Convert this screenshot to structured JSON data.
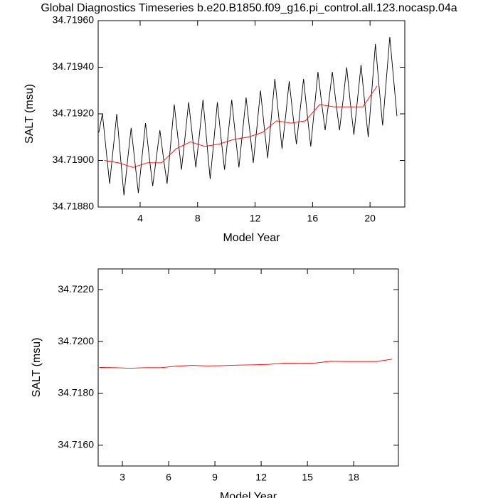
{
  "chart_data": [
    {
      "type": "line",
      "title": "Global Diagnostics Timeseries b.e20.B1850.f09_g16.pi_control.all.123.nocasp.04a",
      "y_label": "SALT (msu)",
      "x_label": "Model Year",
      "xlim": [
        1.08,
        22.42
      ],
      "xticks": [
        4,
        8,
        12,
        16,
        20
      ],
      "ylim": [
        34.7188,
        34.7196
      ],
      "yticks": [
        {
          "value": 34.7188,
          "label": "34.71880"
        },
        {
          "value": 34.719,
          "label": "34.71900"
        },
        {
          "value": 34.7192,
          "label": "34.71920"
        },
        {
          "value": 34.7194,
          "label": "34.71940"
        },
        {
          "value": 34.7196,
          "label": "34.71960"
        }
      ],
      "series": [
        {
          "color": "#000000",
          "x": [
            1.125,
            1.375,
            1.625,
            1.875,
            2.125,
            2.375,
            2.625,
            2.875,
            3.125,
            3.375,
            3.625,
            3.875,
            4.125,
            4.375,
            4.625,
            4.875,
            5.125,
            5.375,
            5.625,
            5.875,
            6.125,
            6.375,
            6.625,
            6.875,
            7.125,
            7.375,
            7.625,
            7.875,
            8.125,
            8.375,
            8.625,
            8.875,
            9.125,
            9.375,
            9.625,
            9.875,
            10.125,
            10.375,
            10.625,
            10.875,
            11.125,
            11.375,
            11.625,
            11.875,
            12.125,
            12.375,
            12.625,
            12.875,
            13.125,
            13.375,
            13.625,
            13.875,
            14.125,
            14.375,
            14.625,
            14.875,
            15.125,
            15.375,
            15.625,
            15.875,
            16.125,
            16.375,
            16.625,
            16.875,
            17.125,
            17.375,
            17.625,
            17.875,
            18.125,
            18.375,
            18.625,
            18.875,
            19.125,
            19.375,
            19.625,
            19.875,
            20.125,
            20.375,
            20.625,
            20.875,
            21.125,
            21.375,
            21.625,
            21.875
          ],
          "values": [
            34.71912,
            34.7192,
            34.71905,
            34.7189,
            34.71905,
            34.7192,
            34.71902,
            34.71885,
            34.719,
            34.71914,
            34.719,
            34.71886,
            34.71901,
            34.71916,
            34.71902,
            34.71889,
            34.71901,
            34.71913,
            34.71901,
            34.7189,
            34.71907,
            34.71924,
            34.7191,
            34.71896,
            34.7191,
            34.71925,
            34.71911,
            34.71897,
            34.71911,
            34.71926,
            34.71909,
            34.71892,
            34.71908,
            34.71925,
            34.7191,
            34.71896,
            34.71911,
            34.71926,
            34.71911,
            34.71897,
            34.71912,
            34.71927,
            34.71913,
            34.71899,
            34.71914,
            34.7193,
            34.71915,
            34.71901,
            34.71918,
            34.71935,
            34.7192,
            34.71905,
            34.71919,
            34.71934,
            34.7192,
            34.71907,
            34.71921,
            34.71935,
            34.7192,
            34.71906,
            34.71922,
            34.71938,
            34.71925,
            34.71913,
            34.71925,
            34.71938,
            34.71925,
            34.71913,
            34.71926,
            34.7194,
            34.71925,
            34.71911,
            34.71926,
            34.71941,
            34.71925,
            34.7191,
            34.7193,
            34.7195,
            34.71932,
            34.71915,
            34.71934,
            34.71953,
            34.71936,
            34.71919
          ]
        },
        {
          "color": "#ff0000",
          "x": [
            1.5,
            2.5,
            3.5,
            4.5,
            5.5,
            6.5,
            7.5,
            8.5,
            9.5,
            10.5,
            11.5,
            12.5,
            13.5,
            14.5,
            15.5,
            16.5,
            17.5,
            18.5,
            19.5,
            20.5
          ],
          "values": [
            34.719,
            34.71899,
            34.71897,
            34.71899,
            34.71899,
            34.71905,
            34.71908,
            34.71906,
            34.71907,
            34.71909,
            34.7191,
            34.71912,
            34.71917,
            34.71916,
            34.71917,
            34.71924,
            34.71923,
            34.71923,
            34.71923,
            34.71932
          ]
        }
      ]
    },
    {
      "type": "line",
      "y_label": "SALT (msu)",
      "x_label": "Model Year",
      "xlim": [
        1.43,
        20.9
      ],
      "xticks": [
        3,
        6,
        9,
        12,
        15,
        18
      ],
      "ylim": [
        34.7152,
        34.7228
      ],
      "yticks": [
        {
          "value": 34.716,
          "label": "34.7160"
        },
        {
          "value": 34.718,
          "label": "34.7180"
        },
        {
          "value": 34.72,
          "label": "34.7200"
        },
        {
          "value": 34.722,
          "label": "34.7220"
        }
      ],
      "series": [
        {
          "color": "#ff0000",
          "x": [
            1.5,
            2.5,
            3.5,
            4.5,
            5.5,
            6.5,
            7.5,
            8.5,
            9.5,
            10.5,
            11.5,
            12.5,
            13.5,
            14.5,
            15.5,
            16.5,
            17.5,
            18.5,
            19.5,
            20.5
          ],
          "values": [
            34.719,
            34.71899,
            34.71897,
            34.71899,
            34.71899,
            34.71905,
            34.71908,
            34.71906,
            34.71907,
            34.71909,
            34.7191,
            34.71912,
            34.71917,
            34.71916,
            34.71917,
            34.71924,
            34.71923,
            34.71923,
            34.71923,
            34.71932
          ]
        }
      ]
    }
  ]
}
